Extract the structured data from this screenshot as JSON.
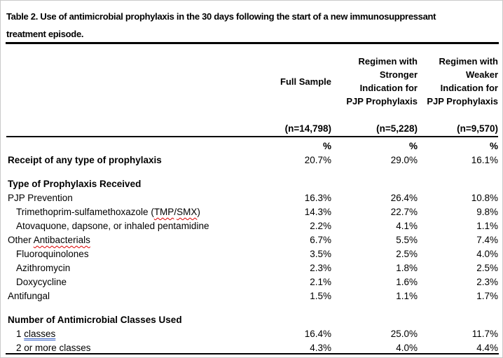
{
  "title": {
    "line1": "Table 2. Use of antimicrobial prophylaxis in the 30 days following the start of a new immunosuppressant",
    "line2": "treatment episode."
  },
  "table": {
    "columns": [
      {
        "header_lines": [
          "Full Sample"
        ],
        "n": "(n=14,798)"
      },
      {
        "header_lines": [
          "Regimen with",
          "Stronger",
          "Indication for",
          "PJP Prophylaxis"
        ],
        "n": "(n=5,228)"
      },
      {
        "header_lines": [
          "Regimen with",
          "Weaker",
          "Indication for",
          "PJP Prophylaxis"
        ],
        "n": "(n=9,570)"
      }
    ],
    "unit_row": {
      "values": [
        "%",
        "%",
        "%"
      ]
    },
    "rows": [
      {
        "label": "Receipt of any type of prophylaxis",
        "bold": true,
        "indent": 0,
        "values": [
          "20.7%",
          "29.0%",
          "16.1%"
        ]
      },
      {
        "label": "Type of Prophylaxis Received",
        "bold": true,
        "indent": 0,
        "values": [
          "",
          "",
          ""
        ]
      },
      {
        "label": "PJP Prevention",
        "indent": 0,
        "values": [
          "16.3%",
          "26.4%",
          "10.8%"
        ]
      },
      {
        "parts": {
          "pre": "Trimethoprim-sulfamethoxazole (",
          "drug1": "TMP",
          "sep": "/",
          "drug2": "SMX",
          "post": ")"
        },
        "indent": 1,
        "values": [
          "14.3%",
          "22.7%",
          "9.8%"
        ]
      },
      {
        "label": "Atovaquone, dapsone, or inhaled pentamidine",
        "indent": 1,
        "values": [
          "2.2%",
          "4.1%",
          "1.1%"
        ]
      },
      {
        "parts": {
          "pre": "Other ",
          "word": "Antibacterials"
        },
        "indent": 0,
        "values": [
          "6.7%",
          "5.5%",
          "7.4%"
        ]
      },
      {
        "label": "Fluoroquinolones",
        "indent": 1,
        "values": [
          "3.5%",
          "2.5%",
          "4.0%"
        ]
      },
      {
        "label": "Azithromycin",
        "indent": 1,
        "values": [
          "2.3%",
          "1.8%",
          "2.5%"
        ]
      },
      {
        "label": "Doxycycline",
        "indent": 1,
        "values": [
          "2.1%",
          "1.6%",
          "2.3%"
        ]
      },
      {
        "label": "Antifungal",
        "indent": 0,
        "values": [
          "1.5%",
          "1.1%",
          "1.7%"
        ]
      },
      {
        "label": "Number of Antimicrobial Classes Used",
        "bold": true,
        "indent": 0,
        "values": [
          "",
          "",
          ""
        ]
      },
      {
        "parts": {
          "pre": "1 ",
          "word": "classes"
        },
        "indent": 1,
        "values": [
          "16.4%",
          "25.0%",
          "11.7%"
        ]
      },
      {
        "label": "2 or more classes",
        "indent": 1,
        "values": [
          "4.3%",
          "4.0%",
          "4.4%"
        ]
      }
    ]
  },
  "colors": {
    "spellcheck_underline": "#dd0000",
    "grammar_underline": "#3a64c8",
    "rule": "#000000"
  }
}
